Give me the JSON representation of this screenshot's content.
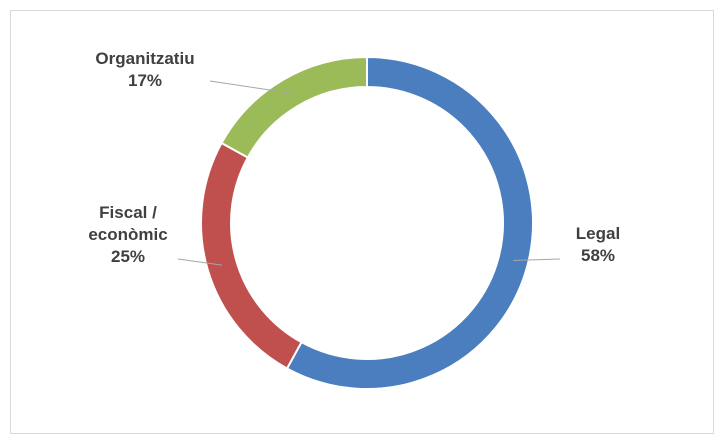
{
  "chart_data": {
    "type": "donut",
    "title": "",
    "slices": [
      {
        "name": "Legal",
        "label_lines": [
          "Legal"
        ],
        "value": 58,
        "value_label": "58%",
        "color": "#4a7ebf"
      },
      {
        "name": "Fiscal / econòmic",
        "label_lines": [
          "Fiscal /",
          "econòmic"
        ],
        "value": 25,
        "value_label": "25%",
        "color": "#c0504d"
      },
      {
        "name": "Organitzatiu",
        "label_lines": [
          "Organitzatiu"
        ],
        "value": 17,
        "value_label": "17%",
        "color": "#9bbb59"
      }
    ],
    "start_angle_deg": 0,
    "direction": "clockwise",
    "slice_border_color": "#ffffff",
    "leader_line_color": "#a6a6a6",
    "label_color": "#404040"
  }
}
